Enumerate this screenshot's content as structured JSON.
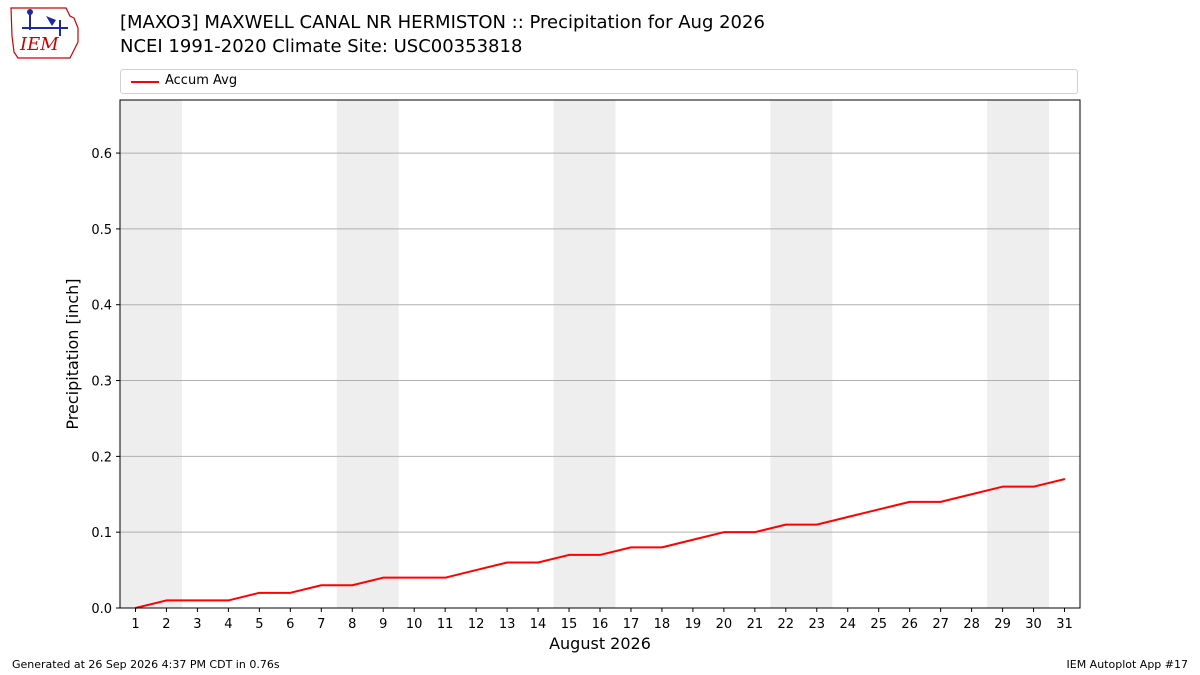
{
  "header": {
    "title_line1": "[MAXO3] MAXWELL CANAL NR HERMISTON :: Precipitation for Aug 2026",
    "title_line2": "NCEI 1991-2020 Climate Site: USC00353818",
    "logo_text": "IEM"
  },
  "footer": {
    "generated": "Generated at 26 Sep 2026 4:37 PM CDT in 0.76s",
    "app": "IEM Autoplot App #17"
  },
  "colors": {
    "line": "#ff0000",
    "weekend_shade": "#eeeeee",
    "grid": "#b0b0b0",
    "logo": "#cc0000"
  },
  "chart_data": {
    "type": "line",
    "title": "[MAXO3] MAXWELL CANAL NR HERMISTON :: Precipitation for Aug 2026",
    "subtitle": "NCEI 1991-2020 Climate Site: USC00353818",
    "xlabel": "August 2026",
    "ylabel": "Precipitation [inch]",
    "xlim": [
      0.5,
      31.5
    ],
    "ylim": [
      0,
      0.67
    ],
    "y_ticks": [
      0.0,
      0.1,
      0.2,
      0.3,
      0.4,
      0.5,
      0.6
    ],
    "y_tick_labels": [
      "0.0",
      "0.1",
      "0.2",
      "0.3",
      "0.4",
      "0.5",
      "0.6"
    ],
    "x_ticks": [
      1,
      2,
      3,
      4,
      5,
      6,
      7,
      8,
      9,
      10,
      11,
      12,
      13,
      14,
      15,
      16,
      17,
      18,
      19,
      20,
      21,
      22,
      23,
      24,
      25,
      26,
      27,
      28,
      29,
      30,
      31
    ],
    "grid": "y",
    "legend": "top",
    "shaded_days": [
      [
        1,
        2
      ],
      [
        8,
        9
      ],
      [
        15,
        16
      ],
      [
        22,
        23
      ],
      [
        29,
        30
      ]
    ],
    "series": [
      {
        "name": "Accum Avg",
        "x": [
          1,
          2,
          3,
          4,
          5,
          6,
          7,
          8,
          9,
          10,
          11,
          12,
          13,
          14,
          15,
          16,
          17,
          18,
          19,
          20,
          21,
          22,
          23,
          24,
          25,
          26,
          27,
          28,
          29,
          30,
          31
        ],
        "values": [
          0.0,
          0.01,
          0.01,
          0.01,
          0.02,
          0.02,
          0.03,
          0.03,
          0.04,
          0.04,
          0.04,
          0.05,
          0.06,
          0.06,
          0.07,
          0.07,
          0.08,
          0.08,
          0.09,
          0.1,
          0.1,
          0.11,
          0.11,
          0.12,
          0.13,
          0.14,
          0.14,
          0.15,
          0.16,
          0.16,
          0.17
        ]
      }
    ]
  }
}
